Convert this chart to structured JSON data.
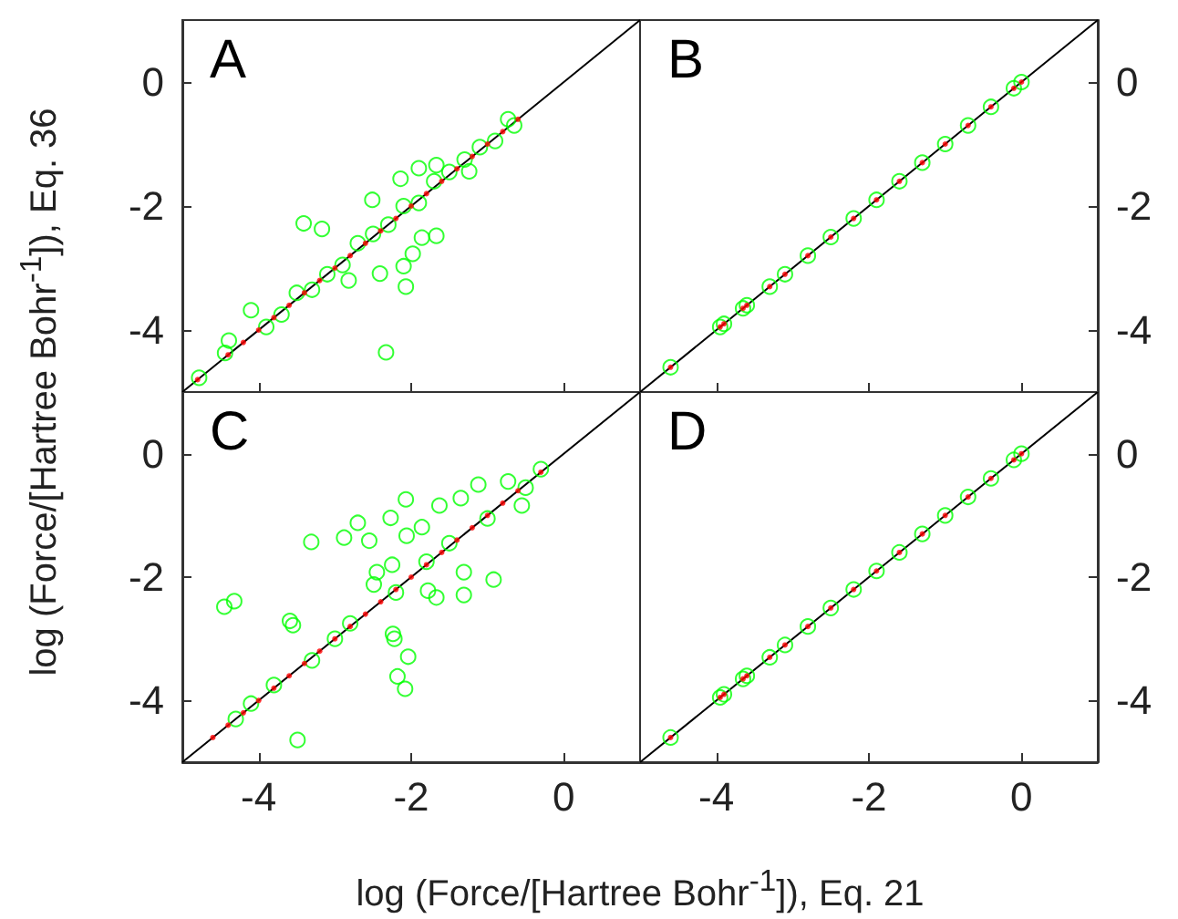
{
  "chart_data": [
    {
      "type": "scatter",
      "title": "A",
      "ylabel": "log (Force/[Hartree Bohr$^{-1}$]), Eq. 36",
      "xlim": [
        -5,
        1
      ],
      "ylim": [
        -5,
        1
      ],
      "xticks": [
        -4,
        -2,
        0
      ],
      "yticks": [
        -4,
        -2,
        0
      ],
      "tick_labels": "y",
      "series": [
        {
          "color": "#00ff00",
          "marker": "circle",
          "x": [
            -4.78,
            -4.44,
            -4.39,
            -4.1,
            -3.9,
            -3.7,
            -3.5,
            -3.41,
            -3.3,
            -3.17,
            -3.1,
            -2.9,
            -2.82,
            -2.7,
            -2.51,
            -2.5,
            -2.41,
            -2.33,
            -2.3,
            -2.14,
            -2.1,
            -2.1,
            -2.07,
            -1.98,
            -1.9,
            -1.9,
            -1.86,
            -1.7,
            -1.67,
            -1.67,
            -1.5,
            -1.3,
            -1.24,
            -1.1,
            -0.9,
            -0.73,
            -0.65
          ],
          "values": [
            -4.77,
            -4.37,
            -4.17,
            -3.68,
            -3.95,
            -3.75,
            -3.4,
            -2.28,
            -3.35,
            -2.37,
            -3.1,
            -2.95,
            -3.2,
            -2.6,
            -1.9,
            -2.45,
            -3.09,
            -4.36,
            -2.3,
            -1.56,
            -2.0,
            -2.97,
            -3.3,
            -2.77,
            -1.39,
            -1.95,
            -2.51,
            -1.6,
            -1.34,
            -2.48,
            -1.45,
            -1.25,
            -1.44,
            -1.05,
            -0.95,
            -0.6,
            -0.7
          ]
        },
        {
          "color": "#ff0000",
          "marker": "circle",
          "x": [
            -4.8,
            -4.4,
            -4.2,
            -4.0,
            -3.8,
            -3.6,
            -3.4,
            -3.2,
            -3.0,
            -2.8,
            -2.6,
            -2.4,
            -2.2,
            -2.0,
            -1.8,
            -1.6,
            -1.4,
            -1.2,
            -1.0,
            -0.8,
            -0.6
          ],
          "values": [
            -4.8,
            -4.4,
            -4.2,
            -4.0,
            -3.8,
            -3.6,
            -3.4,
            -3.2,
            -3.0,
            -2.8,
            -2.6,
            -2.4,
            -2.2,
            -2.0,
            -1.8,
            -1.6,
            -1.4,
            -1.2,
            -1.0,
            -0.8,
            -0.6
          ]
        },
        {
          "type": "line",
          "color": "#000000",
          "marker": "none",
          "x": [
            -5,
            1
          ],
          "values": [
            -5,
            1
          ]
        }
      ]
    },
    {
      "type": "scatter",
      "title": "B",
      "xlim": [
        -5,
        1
      ],
      "ylim": [
        -5,
        1
      ],
      "xticks": [
        -4,
        -2,
        0
      ],
      "yticks": [
        -4,
        -2,
        0
      ],
      "tick_labels": "y",
      "series": [
        {
          "color": "#00ff00",
          "marker": "circle",
          "x": [
            -4.6,
            -3.95,
            -3.9,
            -3.65,
            -3.6,
            -3.3,
            -3.1,
            -2.8,
            -2.5,
            -2.2,
            -1.9,
            -1.6,
            -1.3,
            -1.0,
            -0.7,
            -0.4,
            -0.1,
            0.0
          ],
          "values": [
            -4.6,
            -3.95,
            -3.9,
            -3.65,
            -3.6,
            -3.3,
            -3.1,
            -2.8,
            -2.5,
            -2.2,
            -1.9,
            -1.6,
            -1.3,
            -1.0,
            -0.7,
            -0.4,
            -0.1,
            0.0
          ]
        },
        {
          "color": "#ff0000",
          "marker": "circle",
          "x": [
            -4.6,
            -3.95,
            -3.9,
            -3.65,
            -3.6,
            -3.3,
            -3.1,
            -2.8,
            -2.5,
            -2.2,
            -1.9,
            -1.6,
            -1.3,
            -1.0,
            -0.7,
            -0.4,
            -0.1,
            0.0
          ],
          "values": [
            -4.6,
            -3.95,
            -3.9,
            -3.65,
            -3.6,
            -3.3,
            -3.1,
            -2.8,
            -2.5,
            -2.2,
            -1.9,
            -1.6,
            -1.3,
            -1.0,
            -0.7,
            -0.4,
            -0.1,
            0.0
          ]
        },
        {
          "type": "line",
          "color": "#000000",
          "marker": "none",
          "x": [
            -5,
            1
          ],
          "values": [
            -5,
            1
          ]
        }
      ]
    },
    {
      "type": "scatter",
      "title": "C",
      "xlabel": "log (Force/[Hartree Bohr$^{-1}$]), Eq. 21",
      "xlim": [
        -5,
        1
      ],
      "ylim": [
        -5,
        1
      ],
      "xticks": [
        -4,
        -2,
        0
      ],
      "yticks": [
        -4,
        -2,
        0
      ],
      "series": [
        {
          "color": "#00ff00",
          "marker": "circle",
          "x": [
            -4.45,
            -4.32,
            -4.3,
            -4.1,
            -3.8,
            -3.59,
            -3.55,
            -3.49,
            -3.31,
            -3.3,
            -3.0,
            -2.88,
            -2.8,
            -2.7,
            -2.55,
            -2.49,
            -2.45,
            -2.27,
            -2.25,
            -2.24,
            -2.22,
            -2.2,
            -2.18,
            -2.08,
            -2.07,
            -2.06,
            -2.04,
            -1.86,
            -1.8,
            -1.78,
            -1.67,
            -1.63,
            -1.5,
            -1.35,
            -1.31,
            -1.31,
            -1.12,
            -1.0,
            -0.92,
            -0.73,
            -0.55,
            -0.5,
            -0.3
          ],
          "values": [
            -2.48,
            -2.39,
            -4.3,
            -4.05,
            -3.75,
            -2.71,
            -2.78,
            -4.64,
            -1.43,
            -3.35,
            -3.0,
            -1.36,
            -2.75,
            -1.12,
            -1.41,
            -2.12,
            -1.92,
            -1.04,
            -1.8,
            -2.92,
            -3.0,
            -2.25,
            -3.61,
            -3.81,
            -0.74,
            -1.33,
            -3.29,
            -1.19,
            -1.75,
            -2.22,
            -2.33,
            -0.84,
            -1.45,
            -0.72,
            -2.29,
            -1.92,
            -0.5,
            -1.05,
            -2.04,
            -0.45,
            -0.84,
            -0.55,
            -0.25
          ]
        },
        {
          "color": "#ff0000",
          "marker": "circle",
          "x": [
            -4.6,
            -4.4,
            -4.2,
            -4.0,
            -3.8,
            -3.6,
            -3.4,
            -3.2,
            -3.0,
            -2.8,
            -2.6,
            -2.4,
            -2.2,
            -2.0,
            -1.8,
            -1.6,
            -1.4,
            -1.2,
            -1.0,
            -0.8,
            -0.6,
            -0.3
          ],
          "values": [
            -4.6,
            -4.4,
            -4.2,
            -4.0,
            -3.8,
            -3.6,
            -3.4,
            -3.2,
            -3.0,
            -2.8,
            -2.6,
            -2.4,
            -2.2,
            -2.0,
            -1.8,
            -1.6,
            -1.4,
            -1.2,
            -1.0,
            -0.8,
            -0.6,
            -0.3
          ]
        },
        {
          "type": "line",
          "color": "#000000",
          "marker": "none",
          "x": [
            -5,
            1
          ],
          "values": [
            -5,
            1
          ]
        }
      ]
    },
    {
      "type": "scatter",
      "title": "D",
      "xlim": [
        -5,
        1
      ],
      "ylim": [
        -5,
        1
      ],
      "xticks": [
        -4,
        -2,
        0
      ],
      "yticks": [
        -4,
        -2,
        0
      ],
      "series": [
        {
          "color": "#00ff00",
          "marker": "circle",
          "x": [
            -4.6,
            -3.95,
            -3.9,
            -3.65,
            -3.6,
            -3.3,
            -3.1,
            -2.8,
            -2.5,
            -2.2,
            -1.9,
            -1.6,
            -1.3,
            -1.0,
            -0.7,
            -0.4,
            -0.1,
            0.0
          ],
          "values": [
            -4.6,
            -3.95,
            -3.9,
            -3.65,
            -3.6,
            -3.3,
            -3.1,
            -2.8,
            -2.5,
            -2.2,
            -1.9,
            -1.6,
            -1.3,
            -1.0,
            -0.7,
            -0.4,
            -0.1,
            0.0
          ]
        },
        {
          "color": "#ff0000",
          "marker": "circle",
          "x": [
            -4.6,
            -3.95,
            -3.9,
            -3.65,
            -3.6,
            -3.3,
            -3.1,
            -2.8,
            -2.5,
            -2.2,
            -1.9,
            -1.6,
            -1.3,
            -1.0,
            -0.7,
            -0.4,
            -0.1,
            0.0
          ],
          "values": [
            -4.6,
            -3.95,
            -3.9,
            -3.65,
            -3.6,
            -3.3,
            -3.1,
            -2.8,
            -2.5,
            -2.2,
            -1.9,
            -1.6,
            -1.3,
            -1.0,
            -0.7,
            -0.4,
            -0.1,
            0.0
          ]
        },
        {
          "type": "line",
          "color": "#000000",
          "marker": "none",
          "x": [
            -5,
            1
          ],
          "values": [
            -5,
            1
          ]
        }
      ]
    }
  ]
}
